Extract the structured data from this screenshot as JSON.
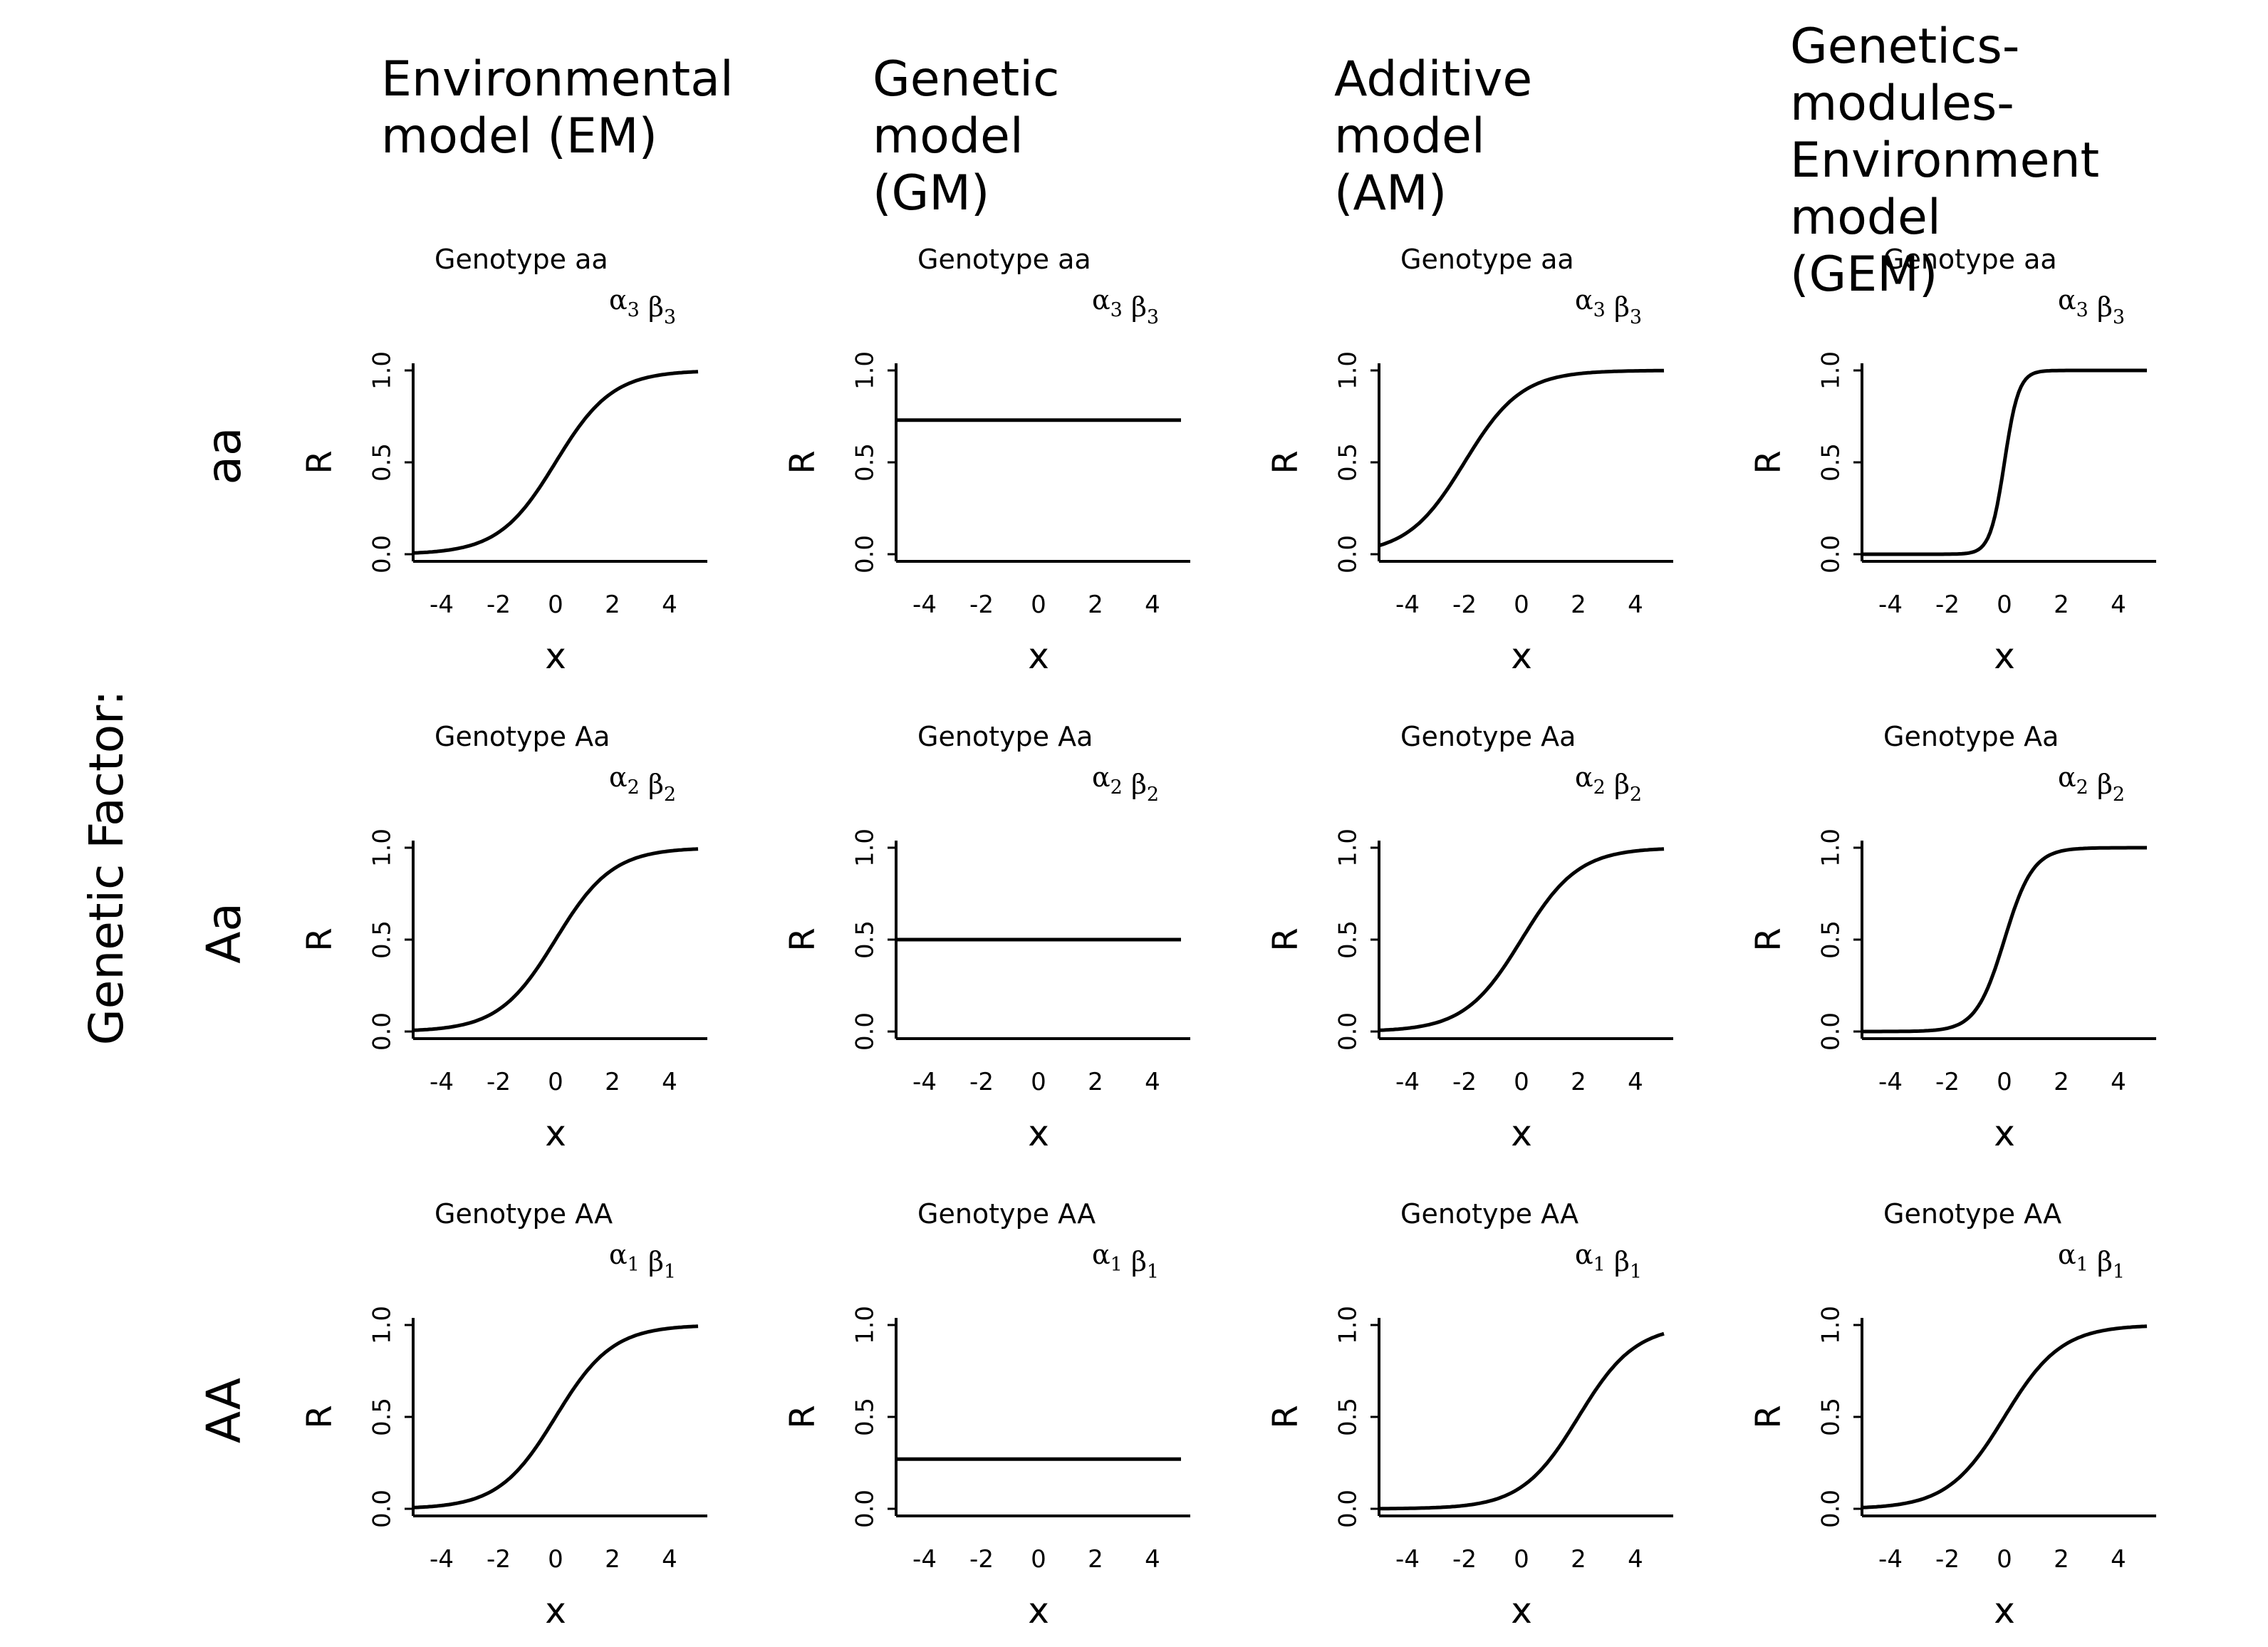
{
  "figure": {
    "factor_label": "Genetic Factor:",
    "columns": [
      {
        "key": "EM",
        "title": "Environmental\nmodel (EM)"
      },
      {
        "key": "GM",
        "title": "Genetic\nmodel (GM)"
      },
      {
        "key": "AM",
        "title": "Additive\nmodel (AM)"
      },
      {
        "key": "GEM",
        "title": "Genetics-modules-\nEnvironment\nmodel (GEM)"
      }
    ],
    "rows": [
      {
        "key": "aa",
        "label": "aa",
        "genotype": "Genotype aa",
        "alpha": "3",
        "beta": "3"
      },
      {
        "key": "Aa",
        "label": "Aa",
        "genotype": "Genotype Aa",
        "alpha": "2",
        "beta": "2"
      },
      {
        "key": "AA",
        "label": "AA",
        "genotype": "Genotype AA",
        "alpha": "1",
        "beta": "1"
      }
    ]
  },
  "chart_data": [
    {
      "type": "line",
      "model": "EM",
      "genotype": "aa",
      "title": "Genotype aa",
      "annotation": "α3 β3",
      "xlabel": "x",
      "ylabel": "R",
      "xlim": [
        -5,
        5
      ],
      "ylim": [
        0,
        1
      ],
      "xticks": [
        -4,
        -2,
        0,
        2,
        4
      ],
      "yticks": [
        "0.0",
        "0.5",
        "1.0"
      ],
      "curve": {
        "kind": "logistic",
        "midpoint": 0,
        "slope": 1
      }
    },
    {
      "type": "line",
      "model": "GM",
      "genotype": "aa",
      "title": "Genotype aa",
      "annotation": "α3 β3",
      "xlabel": "x",
      "ylabel": "R",
      "xlim": [
        -5,
        5
      ],
      "ylim": [
        0,
        1
      ],
      "xticks": [
        -4,
        -2,
        0,
        2,
        4
      ],
      "yticks": [
        "0.0",
        "0.5",
        "1.0"
      ],
      "curve": {
        "kind": "constant",
        "value": 0.73
      }
    },
    {
      "type": "line",
      "model": "AM",
      "genotype": "aa",
      "title": "Genotype aa",
      "annotation": "α3 β3",
      "xlabel": "x",
      "ylabel": "R",
      "xlim": [
        -5,
        5
      ],
      "ylim": [
        0,
        1
      ],
      "xticks": [
        -4,
        -2,
        0,
        2,
        4
      ],
      "yticks": [
        "0.0",
        "0.5",
        "1.0"
      ],
      "curve": {
        "kind": "logistic",
        "midpoint": -2,
        "slope": 1
      }
    },
    {
      "type": "line",
      "model": "GEM",
      "genotype": "aa",
      "title": "Genotype aa",
      "annotation": "α3 β3",
      "xlabel": "x",
      "ylabel": "R",
      "xlim": [
        -5,
        5
      ],
      "ylim": [
        0,
        1
      ],
      "xticks": [
        -4,
        -2,
        0,
        2,
        4
      ],
      "yticks": [
        "0.0",
        "0.5",
        "1.0"
      ],
      "curve": {
        "kind": "logistic",
        "midpoint": 0,
        "slope": 4
      }
    },
    {
      "type": "line",
      "model": "EM",
      "genotype": "Aa",
      "title": "Genotype Aa",
      "annotation": "α2 β2",
      "xlabel": "x",
      "ylabel": "R",
      "xlim": [
        -5,
        5
      ],
      "ylim": [
        0,
        1
      ],
      "xticks": [
        -4,
        -2,
        0,
        2,
        4
      ],
      "yticks": [
        "0.0",
        "0.5",
        "1.0"
      ],
      "curve": {
        "kind": "logistic",
        "midpoint": 0,
        "slope": 1
      }
    },
    {
      "type": "line",
      "model": "GM",
      "genotype": "Aa",
      "title": "Genotype Aa",
      "annotation": "α2 β2",
      "xlabel": "x",
      "ylabel": "R",
      "xlim": [
        -5,
        5
      ],
      "ylim": [
        0,
        1
      ],
      "xticks": [
        -4,
        -2,
        0,
        2,
        4
      ],
      "yticks": [
        "0.0",
        "0.5",
        "1.0"
      ],
      "curve": {
        "kind": "constant",
        "value": 0.5
      }
    },
    {
      "type": "line",
      "model": "AM",
      "genotype": "Aa",
      "title": "Genotype Aa",
      "annotation": "α2 β2",
      "xlabel": "x",
      "ylabel": "R",
      "xlim": [
        -5,
        5
      ],
      "ylim": [
        0,
        1
      ],
      "xticks": [
        -4,
        -2,
        0,
        2,
        4
      ],
      "yticks": [
        "0.0",
        "0.5",
        "1.0"
      ],
      "curve": {
        "kind": "logistic",
        "midpoint": 0,
        "slope": 1
      }
    },
    {
      "type": "line",
      "model": "GEM",
      "genotype": "Aa",
      "title": "Genotype Aa",
      "annotation": "α2 β2",
      "xlabel": "x",
      "ylabel": "R",
      "xlim": [
        -5,
        5
      ],
      "ylim": [
        0,
        1
      ],
      "xticks": [
        -4,
        -2,
        0,
        2,
        4
      ],
      "yticks": [
        "0.0",
        "0.5",
        "1.0"
      ],
      "curve": {
        "kind": "logistic",
        "midpoint": 0,
        "slope": 2
      }
    },
    {
      "type": "line",
      "model": "EM",
      "genotype": "AA",
      "title": "Genotype AA",
      "annotation": "α1 β1",
      "xlabel": "x",
      "ylabel": "R",
      "xlim": [
        -5,
        5
      ],
      "ylim": [
        0,
        1
      ],
      "xticks": [
        -4,
        -2,
        0,
        2,
        4
      ],
      "yticks": [
        "0.0",
        "0.5",
        "1.0"
      ],
      "curve": {
        "kind": "logistic",
        "midpoint": 0,
        "slope": 1
      }
    },
    {
      "type": "line",
      "model": "GM",
      "genotype": "AA",
      "title": "Genotype AA",
      "annotation": "α1 β1",
      "xlabel": "x",
      "ylabel": "R",
      "xlim": [
        -5,
        5
      ],
      "ylim": [
        0,
        1
      ],
      "xticks": [
        -4,
        -2,
        0,
        2,
        4
      ],
      "yticks": [
        "0.0",
        "0.5",
        "1.0"
      ],
      "curve": {
        "kind": "constant",
        "value": 0.27
      }
    },
    {
      "type": "line",
      "model": "AM",
      "genotype": "AA",
      "title": "Genotype AA",
      "annotation": "α1 β1",
      "xlabel": "x",
      "ylabel": "R",
      "xlim": [
        -5,
        5
      ],
      "ylim": [
        0,
        1
      ],
      "xticks": [
        -4,
        -2,
        0,
        2,
        4
      ],
      "yticks": [
        "0.0",
        "0.5",
        "1.0"
      ],
      "curve": {
        "kind": "logistic",
        "midpoint": 2,
        "slope": 1
      }
    },
    {
      "type": "line",
      "model": "GEM",
      "genotype": "AA",
      "title": "Genotype AA",
      "annotation": "α1 β1",
      "xlabel": "x",
      "ylabel": "R",
      "xlim": [
        -5,
        5
      ],
      "ylim": [
        0,
        1
      ],
      "xticks": [
        -4,
        -2,
        0,
        2,
        4
      ],
      "yticks": [
        "0.0",
        "0.5",
        "1.0"
      ],
      "curve": {
        "kind": "logistic",
        "midpoint": 0,
        "slope": 1
      }
    }
  ]
}
